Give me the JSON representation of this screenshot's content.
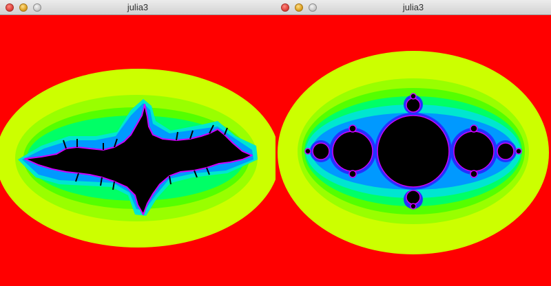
{
  "windows": [
    {
      "title": "julia3",
      "buttons": [
        "close",
        "minimize",
        "zoom"
      ],
      "fractal": "julia-set-dendrite"
    },
    {
      "title": "julia3",
      "buttons": [
        "close",
        "minimize",
        "zoom"
      ],
      "fractal": "julia-set-basilica"
    }
  ],
  "colors": {
    "background": "#ff0000",
    "band_outer": "#ccff00",
    "band_2": "#99ff00",
    "band_3": "#55ff00",
    "band_4": "#00ff66",
    "band_5": "#00e6d0",
    "band_6": "#0099ff",
    "band_7": "#2233ff",
    "edge": "#cc00ff",
    "set": "#000000"
  }
}
